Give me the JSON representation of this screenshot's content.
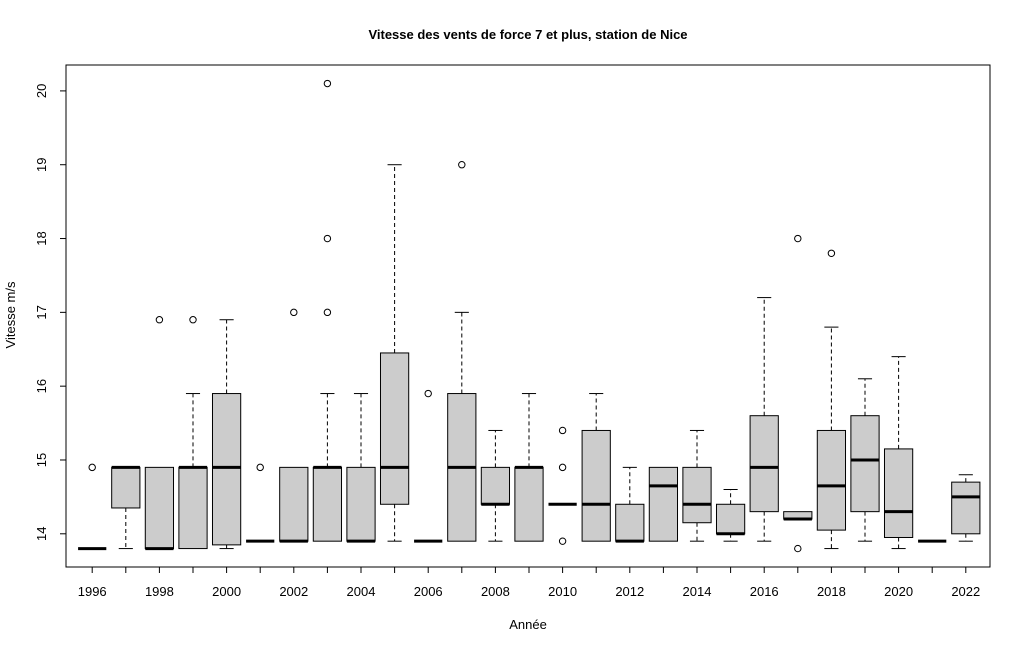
{
  "chart_data": {
    "type": "box",
    "title": "Vitesse des vents de force 7 et plus, station de Nice",
    "xlabel": "Année",
    "ylabel": "Vitesse m/s",
    "ylim": [
      13.6,
      20.3
    ],
    "y_ticks": [
      14,
      15,
      16,
      17,
      18,
      19,
      20
    ],
    "x_tick_labels": [
      "1996",
      "1998",
      "2000",
      "2002",
      "2004",
      "2006",
      "2008",
      "2010",
      "2012",
      "2014",
      "2016",
      "2018",
      "2020",
      "2022"
    ],
    "colors": {
      "box_fill": "#cccccc",
      "stroke": "#000000"
    },
    "boxes": [
      {
        "year": "1996",
        "min": 13.8,
        "q1": 13.8,
        "median": 13.8,
        "q3": 13.8,
        "max": 13.8,
        "outliers": [
          14.9
        ]
      },
      {
        "year": "1997",
        "min": 13.8,
        "q1": 14.35,
        "median": 14.9,
        "q3": 14.9,
        "max": 14.9,
        "outliers": []
      },
      {
        "year": "1998",
        "min": 13.8,
        "q1": 13.8,
        "median": 13.8,
        "q3": 14.9,
        "max": 14.9,
        "outliers": [
          16.9
        ]
      },
      {
        "year": "1999",
        "min": 13.8,
        "q1": 13.8,
        "median": 14.9,
        "q3": 14.9,
        "max": 15.9,
        "outliers": [
          16.9
        ]
      },
      {
        "year": "2000",
        "min": 13.8,
        "q1": 13.85,
        "median": 14.9,
        "q3": 15.9,
        "max": 16.9,
        "outliers": []
      },
      {
        "year": "2001",
        "min": 13.9,
        "q1": 13.9,
        "median": 13.9,
        "q3": 13.9,
        "max": 13.9,
        "outliers": [
          14.9
        ]
      },
      {
        "year": "2002",
        "min": 13.9,
        "q1": 13.9,
        "median": 13.9,
        "q3": 14.9,
        "max": 14.9,
        "outliers": [
          17.0
        ]
      },
      {
        "year": "2003",
        "min": 13.9,
        "q1": 13.9,
        "median": 14.9,
        "q3": 14.9,
        "max": 15.9,
        "outliers": [
          17.0,
          18.0,
          20.1
        ]
      },
      {
        "year": "2004",
        "min": 13.9,
        "q1": 13.9,
        "median": 13.9,
        "q3": 14.9,
        "max": 15.9,
        "outliers": []
      },
      {
        "year": "2005",
        "min": 13.9,
        "q1": 14.4,
        "median": 14.9,
        "q3": 16.45,
        "max": 19.0,
        "outliers": []
      },
      {
        "year": "2006",
        "min": 13.9,
        "q1": 13.9,
        "median": 13.9,
        "q3": 13.9,
        "max": 13.9,
        "outliers": [
          15.9
        ]
      },
      {
        "year": "2007",
        "min": 13.9,
        "q1": 13.9,
        "median": 14.9,
        "q3": 15.9,
        "max": 17.0,
        "outliers": [
          19.0
        ]
      },
      {
        "year": "2008",
        "min": 13.9,
        "q1": 14.4,
        "median": 14.4,
        "q3": 14.9,
        "max": 15.4,
        "outliers": []
      },
      {
        "year": "2009",
        "min": 13.9,
        "q1": 13.9,
        "median": 14.9,
        "q3": 14.9,
        "max": 15.9,
        "outliers": []
      },
      {
        "year": "2010",
        "min": 14.4,
        "q1": 14.4,
        "median": 14.4,
        "q3": 14.4,
        "max": 14.4,
        "outliers": [
          13.9,
          14.9,
          15.4
        ]
      },
      {
        "year": "2011",
        "min": 13.9,
        "q1": 13.9,
        "median": 14.4,
        "q3": 15.4,
        "max": 15.9,
        "outliers": []
      },
      {
        "year": "2012",
        "min": 13.9,
        "q1": 13.9,
        "median": 13.9,
        "q3": 14.4,
        "max": 14.9,
        "outliers": []
      },
      {
        "year": "2013",
        "min": 13.9,
        "q1": 13.9,
        "median": 14.65,
        "q3": 14.9,
        "max": 14.9,
        "outliers": []
      },
      {
        "year": "2014",
        "min": 13.9,
        "q1": 14.15,
        "median": 14.4,
        "q3": 14.9,
        "max": 15.4,
        "outliers": []
      },
      {
        "year": "2015",
        "min": 13.9,
        "q1": 14.0,
        "median": 14.0,
        "q3": 14.4,
        "max": 14.6,
        "outliers": []
      },
      {
        "year": "2016",
        "min": 13.9,
        "q1": 14.3,
        "median": 14.9,
        "q3": 15.6,
        "max": 17.2,
        "outliers": []
      },
      {
        "year": "2017",
        "min": 14.2,
        "q1": 14.2,
        "median": 14.2,
        "q3": 14.3,
        "max": 14.3,
        "outliers": [
          13.8,
          18.0
        ]
      },
      {
        "year": "2018",
        "min": 13.8,
        "q1": 14.05,
        "median": 14.65,
        "q3": 15.4,
        "max": 16.8,
        "outliers": [
          17.8
        ]
      },
      {
        "year": "2019",
        "min": 13.9,
        "q1": 14.3,
        "median": 15.0,
        "q3": 15.6,
        "max": 16.1,
        "outliers": []
      },
      {
        "year": "2020",
        "min": 13.8,
        "q1": 13.95,
        "median": 14.3,
        "q3": 15.15,
        "max": 16.4,
        "outliers": []
      },
      {
        "year": "2021",
        "min": 13.9,
        "q1": 13.9,
        "median": 13.9,
        "q3": 13.9,
        "max": 13.9,
        "outliers": []
      },
      {
        "year": "2022",
        "min": 13.9,
        "q1": 14.0,
        "median": 14.5,
        "q3": 14.7,
        "max": 14.8,
        "outliers": []
      }
    ]
  }
}
